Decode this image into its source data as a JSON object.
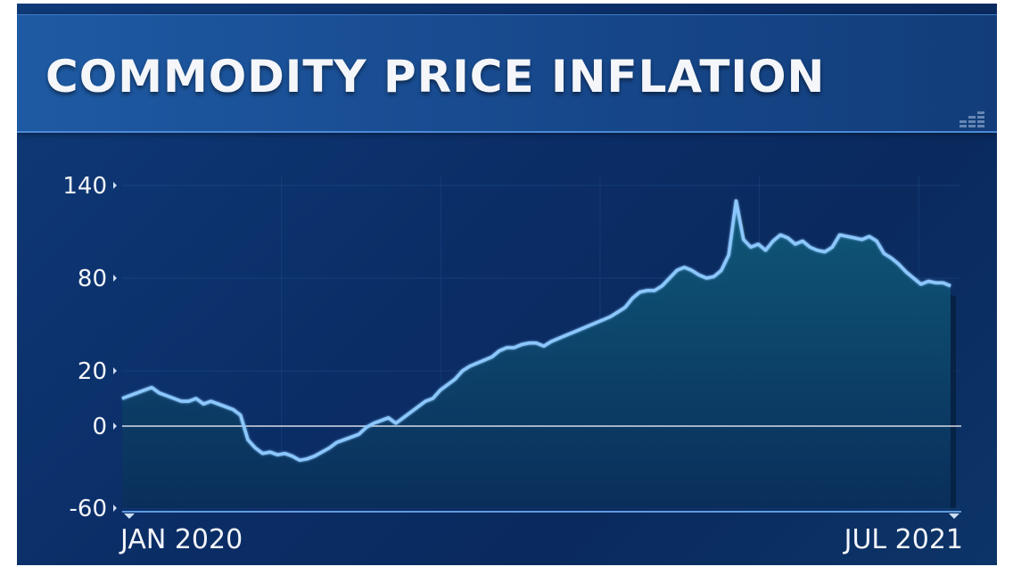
{
  "chart_data": {
    "type": "area",
    "title": "COMMODITY PRICE INFLATION",
    "xlabel": "",
    "ylabel": "",
    "x_start_label": "JAN 2020",
    "x_end_label": "JUL 2021",
    "y_ticks": [
      140,
      80,
      20,
      0,
      -60
    ],
    "ylim": [
      -60,
      140
    ],
    "grid": true,
    "colors": {
      "line": "#8cc8ff",
      "area": "#0b3f6a",
      "zero_line": "#d8dde6",
      "background": "#0b2d66"
    },
    "series": [
      {
        "values": [
          10,
          11,
          12,
          13,
          14,
          12,
          11,
          10,
          9,
          9,
          10,
          8,
          9,
          8,
          7,
          6,
          4,
          -10,
          -16,
          -20,
          -19,
          -21,
          -20,
          -22,
          -25,
          -24,
          -22,
          -19,
          -16,
          -12,
          -10,
          -8,
          -6,
          -1,
          1,
          2,
          3,
          1,
          3,
          5,
          7,
          9,
          10,
          13,
          15,
          17,
          20,
          23,
          25,
          27,
          29,
          33,
          35,
          35,
          37,
          38,
          38,
          36,
          39,
          41,
          43,
          45,
          47,
          49,
          51,
          53,
          55,
          58,
          61,
          67,
          71,
          72,
          72,
          75,
          80,
          85,
          87,
          85,
          82,
          80,
          81,
          85,
          95,
          130,
          105,
          100,
          102,
          98,
          104,
          108,
          106,
          102,
          104,
          100,
          98,
          97,
          100,
          108,
          107,
          106,
          105,
          107,
          104,
          96,
          93,
          89,
          84,
          80,
          76,
          78,
          77,
          77,
          75
        ]
      }
    ]
  }
}
